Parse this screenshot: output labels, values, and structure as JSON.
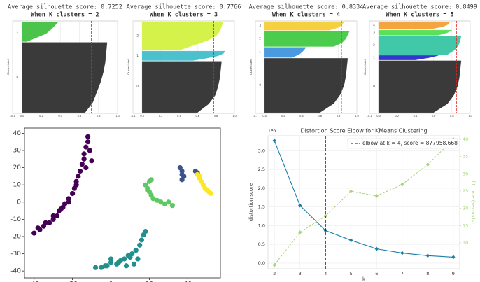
{
  "chart_data": [
    {
      "type": "silhouette",
      "title": "Average silhouette score: 0.7252",
      "subtitle": "When K clusters = 2",
      "score": 0.7252,
      "ylabel": "Cluster label",
      "xlim": [
        -0.1,
        1.0
      ],
      "xticks": [
        -0.1,
        {
          "value": 0,
          "label": "0.0"
        },
        0.2,
        0.4,
        0.6,
        0.8,
        {
          "value": 1,
          "label": "1.0"
        }
      ],
      "ylim": [
        0,
        1030
      ],
      "series": [
        {
          "name": "0",
          "color": "#3a3a3a",
          "size": 780,
          "values": [
            0.89,
            0.88,
            0.87,
            0.85,
            0.82,
            0.78,
            0.74,
            0.66
          ]
        },
        {
          "name": "1",
          "color": "#4cc44c",
          "size": 220,
          "values": [
            0.38,
            0.34,
            0.3,
            0.25,
            0.15,
            0.05
          ]
        }
      ]
    },
    {
      "type": "silhouette",
      "title": "Average silhouette score: 0.7766",
      "subtitle": "When K clusters = 3",
      "score": 0.7766,
      "ylabel": "Cluster label",
      "xlim": [
        -0.1,
        1.0
      ],
      "xticks": [
        -0.1,
        {
          "value": 0,
          "label": "0.0"
        },
        0.2,
        0.4,
        0.6,
        0.8,
        {
          "value": 1,
          "label": "1.0"
        }
      ],
      "ylim": [
        0,
        1040
      ],
      "series": [
        {
          "name": "0",
          "color": "#3a3a3a",
          "size": 575,
          "values": [
            0.86,
            0.85,
            0.84,
            0.82,
            0.79,
            0.72,
            0.6
          ]
        },
        {
          "name": "1",
          "color": "#4cc0cc",
          "size": 105,
          "values": [
            0.9,
            0.88,
            0.82,
            0.7,
            0.55
          ]
        },
        {
          "name": "2",
          "color": "#d4f24a",
          "size": 320,
          "values": [
            0.88,
            0.86,
            0.84,
            0.8,
            0.7,
            0.55,
            0.4
          ]
        }
      ]
    },
    {
      "type": "silhouette",
      "title": "Average silhouette score: 0.8334",
      "subtitle": "When K clusters = 4",
      "score": 0.8334,
      "ylabel": "Cluster label",
      "xlim": [
        -0.1,
        1.0
      ],
      "xticks": [
        -0.1,
        {
          "value": 0,
          "label": "0.0"
        },
        0.2,
        0.4,
        0.6,
        0.8,
        {
          "value": 1,
          "label": "1.0"
        }
      ],
      "ylim": [
        0,
        1050
      ],
      "series": [
        {
          "name": "0",
          "color": "#3a3a3a",
          "size": 615,
          "values": [
            0.9,
            0.89,
            0.88,
            0.86,
            0.82,
            0.75,
            0.6
          ]
        },
        {
          "name": "1",
          "color": "#4a9ae0",
          "size": 115,
          "values": [
            0.45,
            0.42,
            0.38,
            0.3
          ]
        },
        {
          "name": "2",
          "color": "#4ccc4c",
          "size": 175,
          "values": [
            0.92,
            0.9,
            0.88,
            0.84,
            0.75
          ]
        },
        {
          "name": "3",
          "color": "#f5d040",
          "size": 95,
          "values": [
            0.86,
            0.84,
            0.8,
            0.7
          ]
        }
      ]
    },
    {
      "type": "silhouette",
      "title": "Average silhouette score: 0.8499",
      "subtitle": "When K clusters = 5",
      "score": 0.8499,
      "ylabel": "Cluster label",
      "xlim": [
        -0.1,
        1.0
      ],
      "xticks": [
        -0.1,
        {
          "value": 0,
          "label": "0.0"
        },
        0.2,
        0.4,
        0.6,
        0.8,
        {
          "value": 1,
          "label": "1.0"
        }
      ],
      "ylim": [
        0,
        1060
      ],
      "series": [
        {
          "name": "0",
          "color": "#3a3a3a",
          "size": 593,
          "values": [
            0.9,
            0.89,
            0.88,
            0.86,
            0.82,
            0.75,
            0.6
          ]
        },
        {
          "name": "1",
          "color": "#3535d0",
          "size": 51,
          "values": [
            0.65,
            0.55,
            0.4
          ]
        },
        {
          "name": "2",
          "color": "#40c8a8",
          "size": 212,
          "values": [
            0.9,
            0.89,
            0.87,
            0.83,
            0.75
          ]
        },
        {
          "name": "3",
          "color": "#5ae05a",
          "size": 59,
          "values": [
            0.8,
            0.75,
            0.65
          ]
        },
        {
          "name": "4",
          "color": "#f5a540",
          "size": 85,
          "values": [
            0.78,
            0.76,
            0.7,
            0.55
          ]
        }
      ]
    },
    {
      "type": "scatter",
      "xlim": [
        -45,
        57
      ],
      "xticks": [
        -40,
        -20,
        0,
        20,
        40
      ],
      "ylim": [
        -44,
        43
      ],
      "yticks": [
        -40,
        -30,
        -20,
        -10,
        0,
        10,
        20,
        30,
        40
      ],
      "series": [
        {
          "color": "#440154",
          "x": [
            -40,
            -37,
            -35,
            -32,
            -30,
            -28,
            -27,
            -25,
            -24,
            -22,
            -20,
            -19,
            -18,
            -17,
            -16,
            -15,
            -14,
            -14,
            -13,
            -12,
            -12,
            -11,
            -10,
            -13,
            -18,
            -22,
            -26,
            -30,
            -34,
            -38
          ],
          "values": [
            -18,
            -16,
            -14,
            -12,
            -10,
            -8,
            -5,
            -3,
            -1,
            2,
            5,
            8,
            12,
            15,
            18,
            22,
            25,
            28,
            32,
            35,
            38,
            30,
            24,
            20,
            10,
            0,
            -4,
            -8,
            -12,
            -15
          ]
        },
        {
          "color": "#21908d",
          "x": [
            -8,
            -5,
            -2,
            0,
            3,
            5,
            7,
            9,
            11,
            13,
            15,
            16,
            17,
            18,
            12,
            8,
            4,
            0,
            -3,
            14,
            10
          ],
          "values": [
            -38,
            -38,
            -37,
            -35,
            -36,
            -34,
            -33,
            -31,
            -30,
            -28,
            -25,
            -22,
            -19,
            -17,
            -36,
            -37,
            -35,
            -33,
            -37,
            -33,
            -32
          ]
        },
        {
          "color": "#5ec962",
          "x": [
            18,
            19,
            20,
            21,
            22,
            24,
            26,
            28,
            30,
            32,
            20,
            21,
            19
          ],
          "values": [
            10,
            8,
            6,
            4,
            2,
            1,
            0,
            -1,
            0,
            -2,
            12,
            13,
            7
          ]
        },
        {
          "color": "#3b528b",
          "x": [
            36,
            37,
            38,
            37,
            44,
            45,
            46,
            37
          ],
          "values": [
            20,
            18,
            15,
            13,
            18,
            17,
            15,
            16
          ]
        },
        {
          "color": "#fde725",
          "x": [
            45,
            46,
            47,
            48,
            49,
            50,
            51,
            52,
            46
          ],
          "values": [
            16,
            14,
            12,
            10,
            8,
            7,
            6,
            5,
            15
          ]
        }
      ]
    },
    {
      "type": "line",
      "title": "Distortion Score Elbow for KMeans Clustering",
      "xlabel": "k",
      "ylabel": "distortion score",
      "y2label": "fit time (seconds)",
      "y_offset_label": "1e6",
      "legend": "elbow at k = 4, score = 877958.668",
      "elbow_k": 4,
      "grid": true,
      "x": [
        2,
        3,
        4,
        5,
        6,
        7,
        8,
        9
      ],
      "xlim": [
        1.75,
        9.25
      ],
      "xticks": [
        2,
        3,
        4,
        5,
        6,
        7,
        8,
        9
      ],
      "ylim": [
        -0.15,
        3.4
      ],
      "yticks": [
        {
          "value": 0,
          "label": "0.0"
        },
        0.5,
        {
          "value": 1,
          "label": "1.0"
        },
        1.5,
        {
          "value": 2,
          "label": "2.0"
        },
        2.5,
        {
          "value": 3,
          "label": "3.0"
        }
      ],
      "y2lim": [
        2.5,
        41
      ],
      "y2ticks": [
        10,
        15,
        20,
        25,
        30,
        35,
        40
      ],
      "series": [
        {
          "color": "#1a7fa8",
          "values": [
            3.27,
            1.54,
            0.87,
            0.61,
            0.38,
            0.27,
            0.2,
            0.16
          ]
        },
        {
          "color": "#a6d47a",
          "axis": "y2",
          "values": [
            3.6,
            13,
            17.8,
            24.9,
            23.6,
            26.9,
            32.7,
            40
          ]
        }
      ]
    }
  ]
}
